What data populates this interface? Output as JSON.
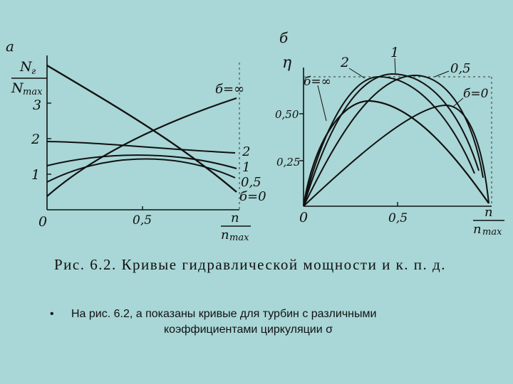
{
  "figure": {
    "panel_a": {
      "letter": "а",
      "y_axis_num": "N",
      "y_axis_num_sub": "г",
      "y_axis_den": "N",
      "y_axis_den_sub": "max",
      "x_axis_num": "n",
      "x_axis_den": "n",
      "x_axis_den_sub": "max",
      "origin": "0",
      "x_tick": "0,5",
      "y_ticks": [
        "1",
        "2",
        "3"
      ],
      "curve_labels": [
        "б=∞",
        "2",
        "1",
        "0,5",
        "б=0"
      ]
    },
    "panel_b": {
      "letter": "б",
      "y_axis_label": "η",
      "x_axis_num": "n",
      "x_axis_den": "n",
      "x_axis_den_sub": "max",
      "origin": "0",
      "x_tick": "0,5",
      "y_ticks": [
        "0,25",
        "0,50"
      ],
      "curve_labels": [
        "б=∞",
        "2",
        "1",
        "0,5",
        "б=0"
      ]
    }
  },
  "caption": "Рис.  6.2.  Кривые гидравлической мощности  и  к.  п.  д.",
  "bullet": {
    "symbol": "•",
    "line1": "На рис. 6.2, а показаны кривые  для турбин с различными",
    "line2": "коэффициентами циркуляции σ"
  }
}
